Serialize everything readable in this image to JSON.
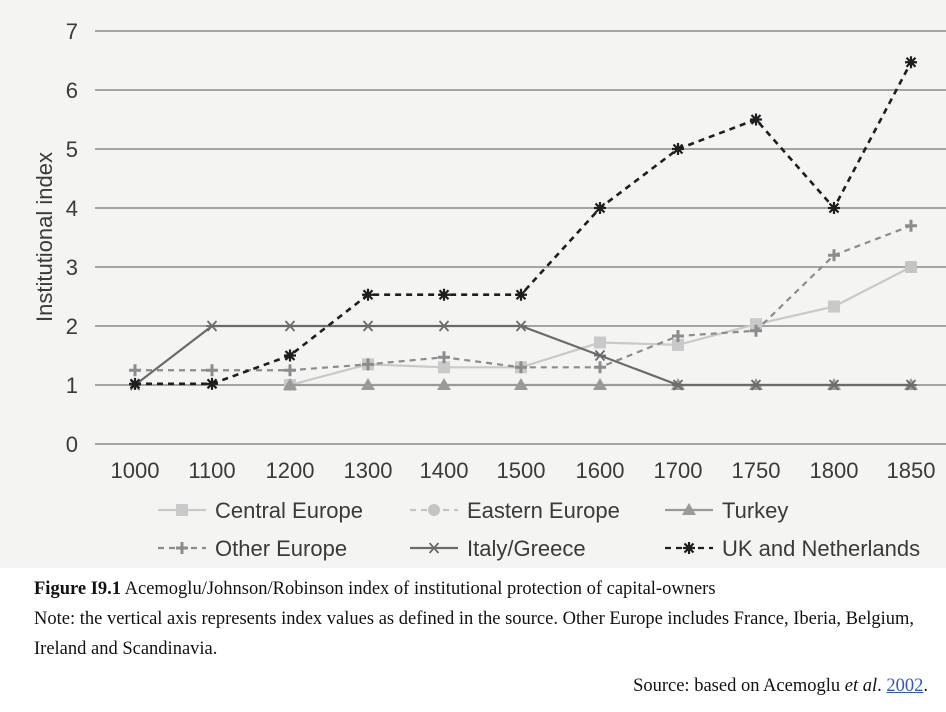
{
  "chart_data": {
    "type": "line",
    "title": "",
    "xlabel": "",
    "ylabel": "Institutional index",
    "ylim": [
      0,
      7
    ],
    "yticks": [
      0,
      1,
      2,
      3,
      4,
      5,
      6,
      7
    ],
    "grid": true,
    "legend_position": "bottom",
    "categories": [
      "1000",
      "1100",
      "1200",
      "1300",
      "1400",
      "1500",
      "1600",
      "1700",
      "1750",
      "1800",
      "1850"
    ],
    "series": [
      {
        "name": "Central Europe",
        "marker": "square",
        "dash": "solid",
        "color": "#c9c9c9",
        "values": [
          null,
          null,
          1.0,
          1.35,
          1.3,
          1.3,
          1.72,
          1.68,
          2.03,
          2.33,
          3.0
        ]
      },
      {
        "name": "Eastern Europe",
        "marker": "circle",
        "dash": "dashed",
        "color": "#c4c4c4",
        "values": [
          null,
          null,
          null,
          null,
          null,
          null,
          null,
          null,
          null,
          null,
          3.0
        ]
      },
      {
        "name": "Turkey",
        "marker": "triangle",
        "dash": "solid",
        "color": "#9a9a9a",
        "values": [
          null,
          null,
          1.0,
          1.0,
          1.0,
          1.0,
          1.0,
          1.0,
          1.0,
          1.0,
          1.0
        ]
      },
      {
        "name": "Other Europe",
        "marker": "plus",
        "dash": "dashed",
        "color": "#8c8c8c",
        "values": [
          1.25,
          1.25,
          1.25,
          1.35,
          1.47,
          1.3,
          1.3,
          1.83,
          1.92,
          3.2,
          3.7
        ]
      },
      {
        "name": "Italy/Greece",
        "marker": "asterisk",
        "dash": "solid",
        "color": "#6b6b6b",
        "values": [
          1.0,
          2.0,
          2.0,
          2.0,
          2.0,
          2.0,
          1.5,
          1.0,
          1.0,
          1.0,
          1.0
        ]
      },
      {
        "name": "UK and Netherlands",
        "marker": "star",
        "dash": "dashed",
        "color": "#1e1e1e",
        "values": [
          1.02,
          1.02,
          1.5,
          2.53,
          2.53,
          2.53,
          4.0,
          5.0,
          5.5,
          4.0,
          6.47
        ]
      }
    ]
  },
  "caption": {
    "label": "Figure I9.1",
    "title": " Acemoglu/Johnson/Robinson index of institutional protection of capital-owners",
    "note": "Note: the vertical axis represents index values as defined in the source. Other Europe includes France, Iberia, Belgium, Ireland and Scandinavia."
  },
  "source": {
    "prefix": "Source: based on Acemoglu ",
    "etal": "et al",
    "dot": ". ",
    "year": "2002",
    "end": "."
  }
}
